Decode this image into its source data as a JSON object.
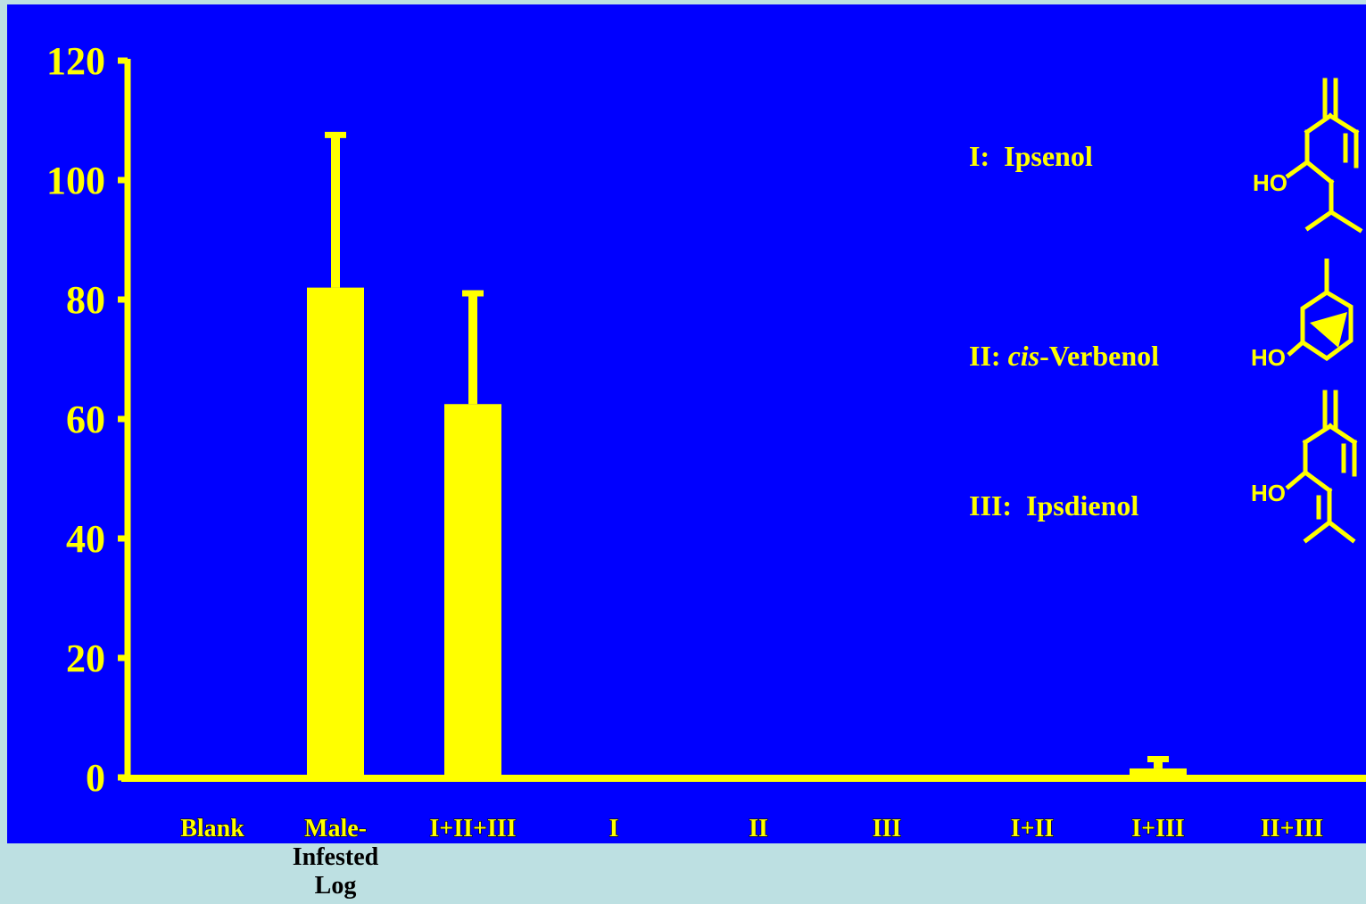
{
  "chart_data": {
    "type": "bar",
    "categories": [
      "Blank",
      "Male-Infested Log",
      "I+II+III",
      "I",
      "II",
      "III",
      "I+II",
      "I+III",
      "II+III"
    ],
    "category_lines": [
      [
        "Blank"
      ],
      [
        "Male-",
        "Infested",
        "Log"
      ],
      [
        "I+II+III"
      ],
      [
        "I"
      ],
      [
        "II"
      ],
      [
        "III"
      ],
      [
        "I+II"
      ],
      [
        "I+III"
      ],
      [
        "II+III"
      ]
    ],
    "values": [
      0,
      82,
      62.5,
      0,
      0,
      0,
      0,
      1.5,
      0
    ],
    "error_upper": [
      0,
      108,
      81.5,
      0,
      0,
      0,
      0,
      3.5,
      0
    ],
    "ylim": [
      0,
      120
    ],
    "yticks": [
      0,
      20,
      40,
      60,
      80,
      100,
      120
    ],
    "title": "",
    "xlabel": "",
    "ylabel": "",
    "grid": false,
    "legend": [
      {
        "id": "I",
        "prefix": "I:  ",
        "italic": "",
        "text": "Ipsenol"
      },
      {
        "id": "II",
        "prefix": "II: ",
        "italic": "cis",
        "text": "-Verbenol"
      },
      {
        "id": "III",
        "prefix": "III:  ",
        "italic": "",
        "text": "Ipsdienol"
      }
    ],
    "molecule_labels": [
      "HO",
      "HO",
      "HO"
    ],
    "colors": {
      "background": "#0000ff",
      "bars": "#ffff00",
      "axis": "#ffff00",
      "page": "#bde0e2"
    }
  }
}
